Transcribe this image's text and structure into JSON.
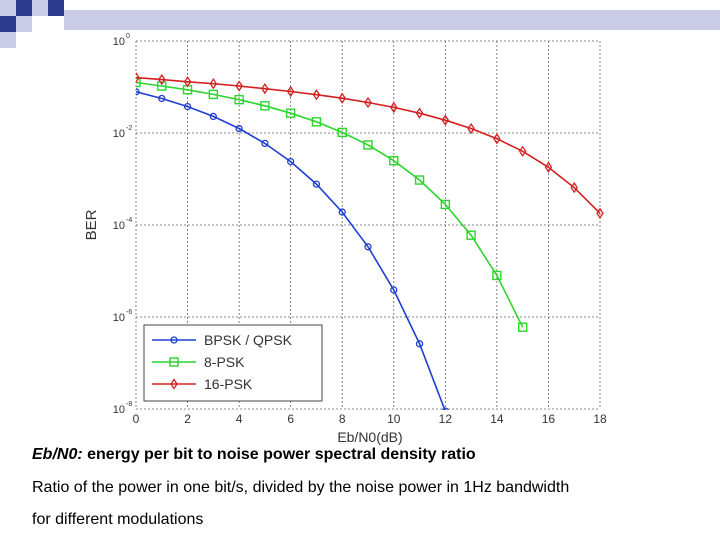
{
  "captions": {
    "line1_lead": "Eb/N0:",
    "line1_rest": " energy per bit to noise power spectral density ratio",
    "line2": "Ratio of the power in one bit/s, divided by the noise power in 1Hz bandwidth",
    "line3": "for different modulations"
  },
  "colors": {
    "deco_light": "#c9cde6",
    "deco_dark": "#2e3a8c"
  },
  "chart_data": {
    "type": "line",
    "title": "",
    "xlabel": "Eb/N0(dB)",
    "ylabel": "BER",
    "xlim": [
      0,
      18
    ],
    "ylim_log10": [
      -8,
      0
    ],
    "y_scale": "log",
    "x_ticks": [
      0,
      2,
      4,
      6,
      8,
      10,
      12,
      14,
      16,
      18
    ],
    "y_ticks": [
      {
        "base": "10",
        "exp": "0",
        "value_log10": 0
      },
      {
        "base": "10",
        "exp": "-2",
        "value_log10": -2
      },
      {
        "base": "10",
        "exp": "-4",
        "value_log10": -4
      },
      {
        "base": "10",
        "exp": "-6",
        "value_log10": -6
      },
      {
        "base": "10",
        "exp": "-8",
        "value_log10": -8
      }
    ],
    "grid": true,
    "legend_position": "bottom-left",
    "series": [
      {
        "name": "BPSK / QPSK",
        "color": "#1f3fd0",
        "marker": "circle",
        "x": [
          0,
          1,
          2,
          3,
          4,
          5,
          6,
          7,
          8,
          9,
          10,
          11,
          12
        ],
        "y": [
          0.0786,
          0.0563,
          0.0375,
          0.0229,
          0.0125,
          0.00595,
          0.00239,
          0.000773,
          0.000191,
          3.36e-05,
          3.87e-06,
          2.61e-07,
          9e-09
        ]
      },
      {
        "name": "8-PSK",
        "color": "#2bd62b",
        "marker": "square",
        "x": [
          0,
          1,
          2,
          3,
          4,
          5,
          6,
          7,
          8,
          9,
          10,
          11,
          12,
          13,
          14,
          15
        ],
        "y": [
          0.125,
          0.105,
          0.087,
          0.069,
          0.053,
          0.039,
          0.027,
          0.0175,
          0.0103,
          0.0055,
          0.0025,
          0.00095,
          0.00028,
          6e-05,
          8e-06,
          6e-07
        ]
      },
      {
        "name": "16-PSK",
        "color": "#d42020",
        "marker": "diamond",
        "x": [
          0,
          1,
          2,
          3,
          4,
          5,
          6,
          7,
          8,
          9,
          10,
          11,
          12,
          13,
          14,
          15,
          16,
          17,
          18
        ],
        "y": [
          0.16,
          0.145,
          0.13,
          0.118,
          0.105,
          0.092,
          0.08,
          0.068,
          0.057,
          0.046,
          0.036,
          0.027,
          0.019,
          0.0125,
          0.0075,
          0.004,
          0.0018,
          0.00065,
          0.00018
        ]
      }
    ]
  }
}
